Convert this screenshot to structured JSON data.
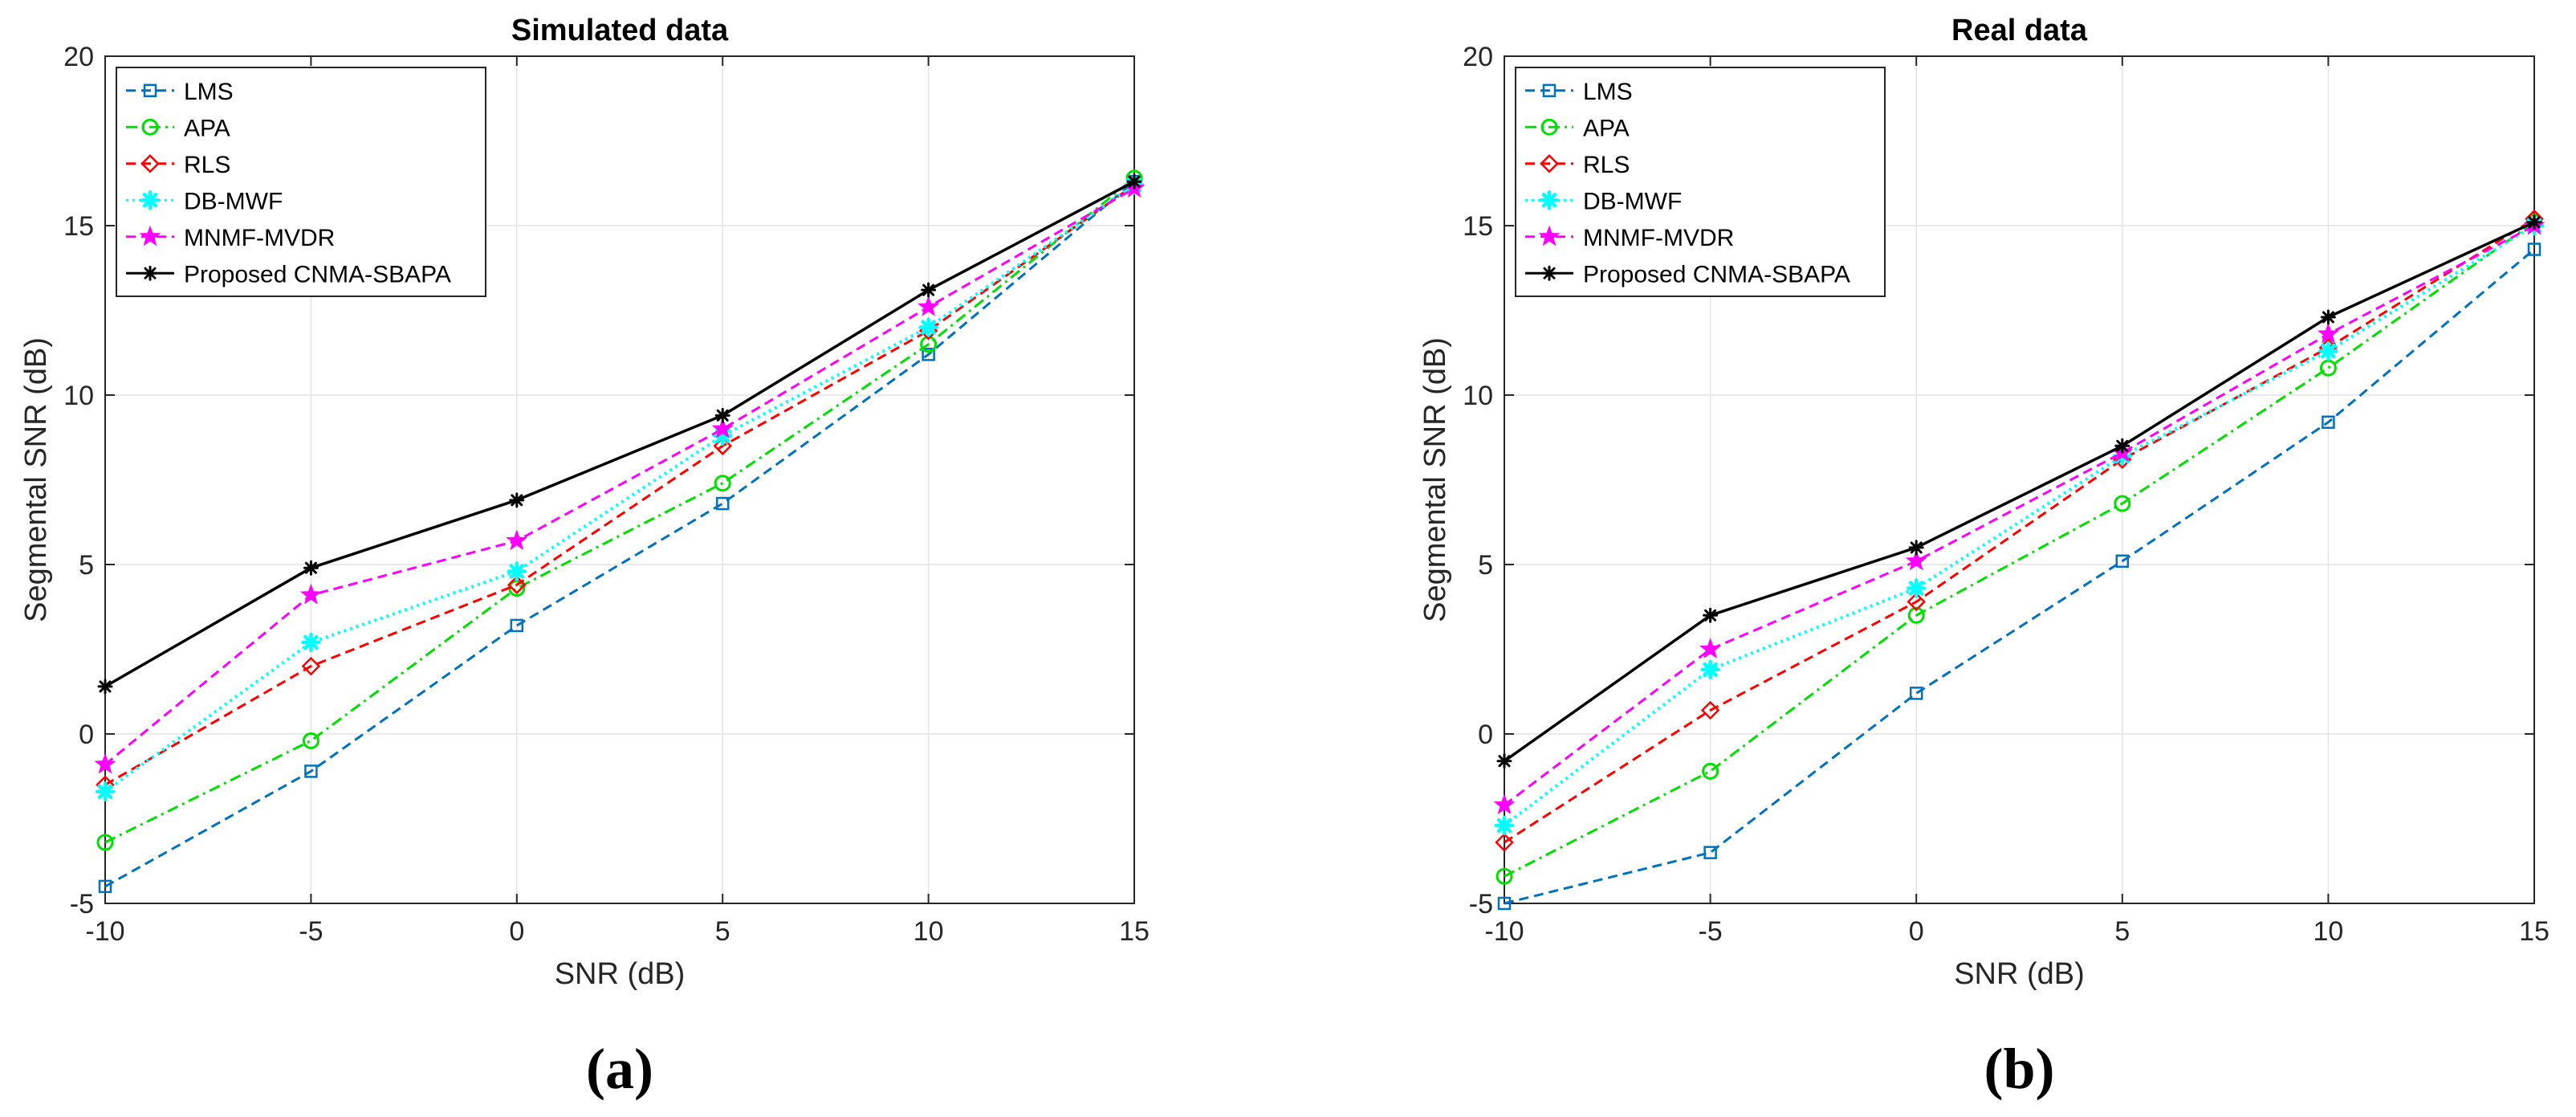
{
  "chart_data": [
    {
      "type": "line",
      "title": "Simulated data",
      "xlabel": "SNR (dB)",
      "ylabel": "Segmental SNR (dB)",
      "panel_label": "(a)",
      "x": [
        -10,
        -5,
        0,
        5,
        10,
        15
      ],
      "xticks": [
        "-10",
        "-5",
        "0",
        "5",
        "10",
        "15"
      ],
      "yticks": [
        "-5",
        "0",
        "5",
        "10",
        "15",
        "20"
      ],
      "xlim": [
        -10,
        15
      ],
      "ylim": [
        -5,
        20
      ],
      "grid": true,
      "legend_position": "top-left",
      "series": [
        {
          "name": "LMS",
          "color": "#0072BD",
          "marker": "square",
          "dash": "dashed",
          "values": [
            -4.5,
            -1.1,
            3.2,
            6.8,
            11.2,
            16.3
          ]
        },
        {
          "name": "APA",
          "color": "#00E000",
          "marker": "circle",
          "dash": "dashdot",
          "values": [
            -3.2,
            -0.2,
            4.3,
            7.4,
            11.5,
            16.4
          ]
        },
        {
          "name": "RLS",
          "color": "#FF0000",
          "marker": "diamond",
          "dash": "dashed",
          "values": [
            -1.5,
            2.0,
            4.4,
            8.5,
            11.9,
            16.2
          ]
        },
        {
          "name": "DB-MWF",
          "color": "#00FFFF",
          "marker": "cross",
          "dash": "dotted",
          "values": [
            -1.7,
            2.7,
            4.8,
            8.8,
            12.0,
            16.2
          ]
        },
        {
          "name": "MNMF-MVDR",
          "color": "#FF00FF",
          "marker": "star",
          "dash": "dashed",
          "values": [
            -0.9,
            4.1,
            5.7,
            9.0,
            12.6,
            16.1
          ]
        },
        {
          "name": "Proposed CNMA-SBAPA",
          "color": "#000000",
          "marker": "asterisk",
          "dash": "solid",
          "values": [
            1.4,
            4.9,
            6.9,
            9.4,
            13.1,
            16.3
          ]
        }
      ]
    },
    {
      "type": "line",
      "title": "Real data",
      "xlabel": "SNR (dB)",
      "ylabel": "Segmental SNR (dB)",
      "panel_label": "(b)",
      "x": [
        -10,
        -5,
        0,
        5,
        10,
        15
      ],
      "xticks": [
        "-10",
        "-5",
        "0",
        "5",
        "10",
        "15"
      ],
      "yticks": [
        "-5",
        "0",
        "5",
        "10",
        "15",
        "20"
      ],
      "xlim": [
        -10,
        15
      ],
      "ylim": [
        -5,
        20
      ],
      "grid": true,
      "legend_position": "top-left",
      "series": [
        {
          "name": "LMS",
          "color": "#0072BD",
          "marker": "square",
          "dash": "dashed",
          "values": [
            -5.0,
            -3.5,
            1.2,
            5.1,
            9.2,
            14.3
          ]
        },
        {
          "name": "APA",
          "color": "#00E000",
          "marker": "circle",
          "dash": "dashdot",
          "values": [
            -4.2,
            -1.1,
            3.5,
            6.8,
            10.8,
            15.1
          ]
        },
        {
          "name": "RLS",
          "color": "#FF0000",
          "marker": "diamond",
          "dash": "dashed",
          "values": [
            -3.2,
            0.7,
            3.9,
            8.1,
            11.4,
            15.2
          ]
        },
        {
          "name": "DB-MWF",
          "color": "#00FFFF",
          "marker": "cross",
          "dash": "dotted",
          "values": [
            -2.7,
            1.9,
            4.3,
            8.2,
            11.3,
            15.0
          ]
        },
        {
          "name": "MNMF-MVDR",
          "color": "#FF00FF",
          "marker": "star",
          "dash": "dashed",
          "values": [
            -2.1,
            2.5,
            5.1,
            8.3,
            11.8,
            15.0
          ]
        },
        {
          "name": "Proposed CNMA-SBAPA",
          "color": "#000000",
          "marker": "asterisk",
          "dash": "solid",
          "values": [
            -0.8,
            3.5,
            5.5,
            8.5,
            12.3,
            15.1
          ]
        }
      ]
    }
  ]
}
